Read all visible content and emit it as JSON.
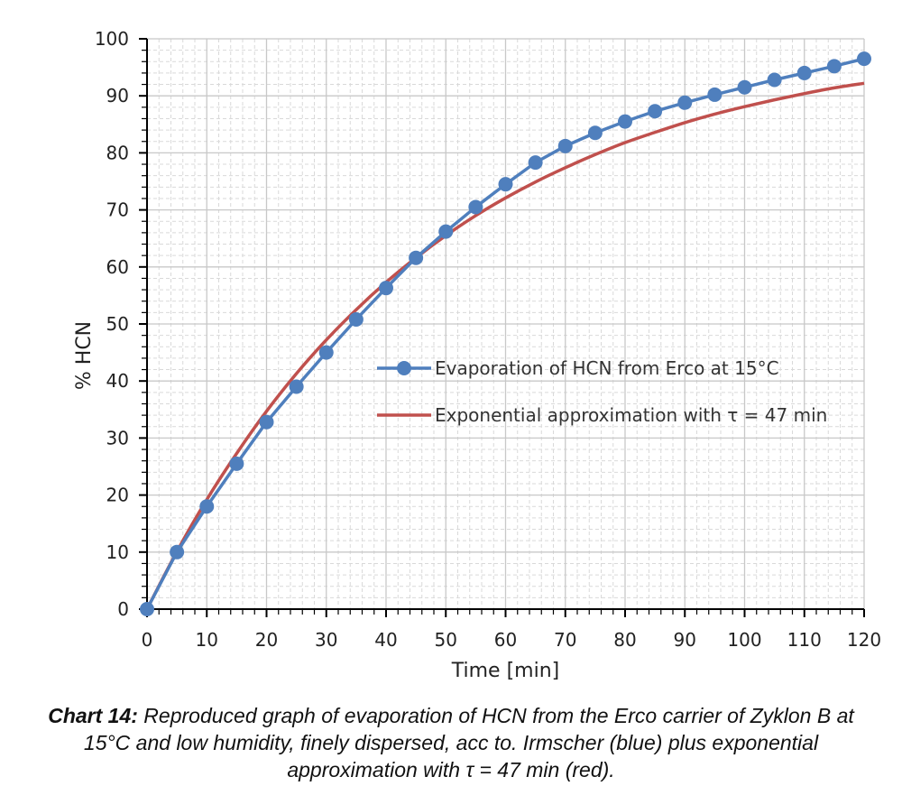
{
  "chart_data": {
    "type": "line",
    "xlabel": "Time [min]",
    "ylabel": "% HCN",
    "xlim": [
      0,
      120
    ],
    "ylim": [
      0,
      100
    ],
    "xticks": [
      0,
      10,
      20,
      30,
      40,
      50,
      60,
      70,
      80,
      90,
      100,
      110,
      120
    ],
    "yticks": [
      0,
      10,
      20,
      30,
      40,
      50,
      60,
      70,
      80,
      90,
      100
    ],
    "grid": true,
    "legend_position": "center-right",
    "series": [
      {
        "name": "Evaporation of HCN from Erco at 15°C",
        "color": "#4f7fbd",
        "marker": "circle",
        "x": [
          0,
          5,
          10,
          15,
          20,
          25,
          30,
          35,
          40,
          45,
          50,
          55,
          60,
          65,
          70,
          75,
          80,
          85,
          90,
          95,
          100,
          105,
          110,
          115,
          120
        ],
        "y": [
          0,
          10,
          18,
          25.5,
          32.8,
          39,
          45,
          50.8,
          56.3,
          61.6,
          66.2,
          70.5,
          74.5,
          78.3,
          81.2,
          83.5,
          85.5,
          87.3,
          88.8,
          90.2,
          91.5,
          92.8,
          94,
          95.2,
          96.5
        ]
      },
      {
        "name": "Exponential approximation with  τ = 47 min",
        "color": "#c0504d",
        "marker": "none",
        "x": [
          0,
          5,
          10,
          15,
          20,
          25,
          30,
          35,
          40,
          45,
          50,
          55,
          60,
          65,
          70,
          75,
          80,
          85,
          90,
          95,
          100,
          105,
          110,
          115,
          120
        ],
        "y": [
          0,
          10.1,
          19.2,
          27.3,
          34.7,
          41.3,
          47.2,
          52.5,
          57.3,
          61.6,
          65.5,
          69,
          72.1,
          74.9,
          77.4,
          79.7,
          81.8,
          83.6,
          85.3,
          86.8,
          88.1,
          89.3,
          90.4,
          91.4,
          92.2
        ]
      }
    ]
  },
  "caption": {
    "label": "Chart 14:",
    "text": " Reproduced graph of evaporation of HCN from the Erco carrier of Zyklon B at 15°C and low humidity, finely dispersed, acc to. Irmscher (blue) plus exponential approximation with τ = 47 min (red)."
  }
}
